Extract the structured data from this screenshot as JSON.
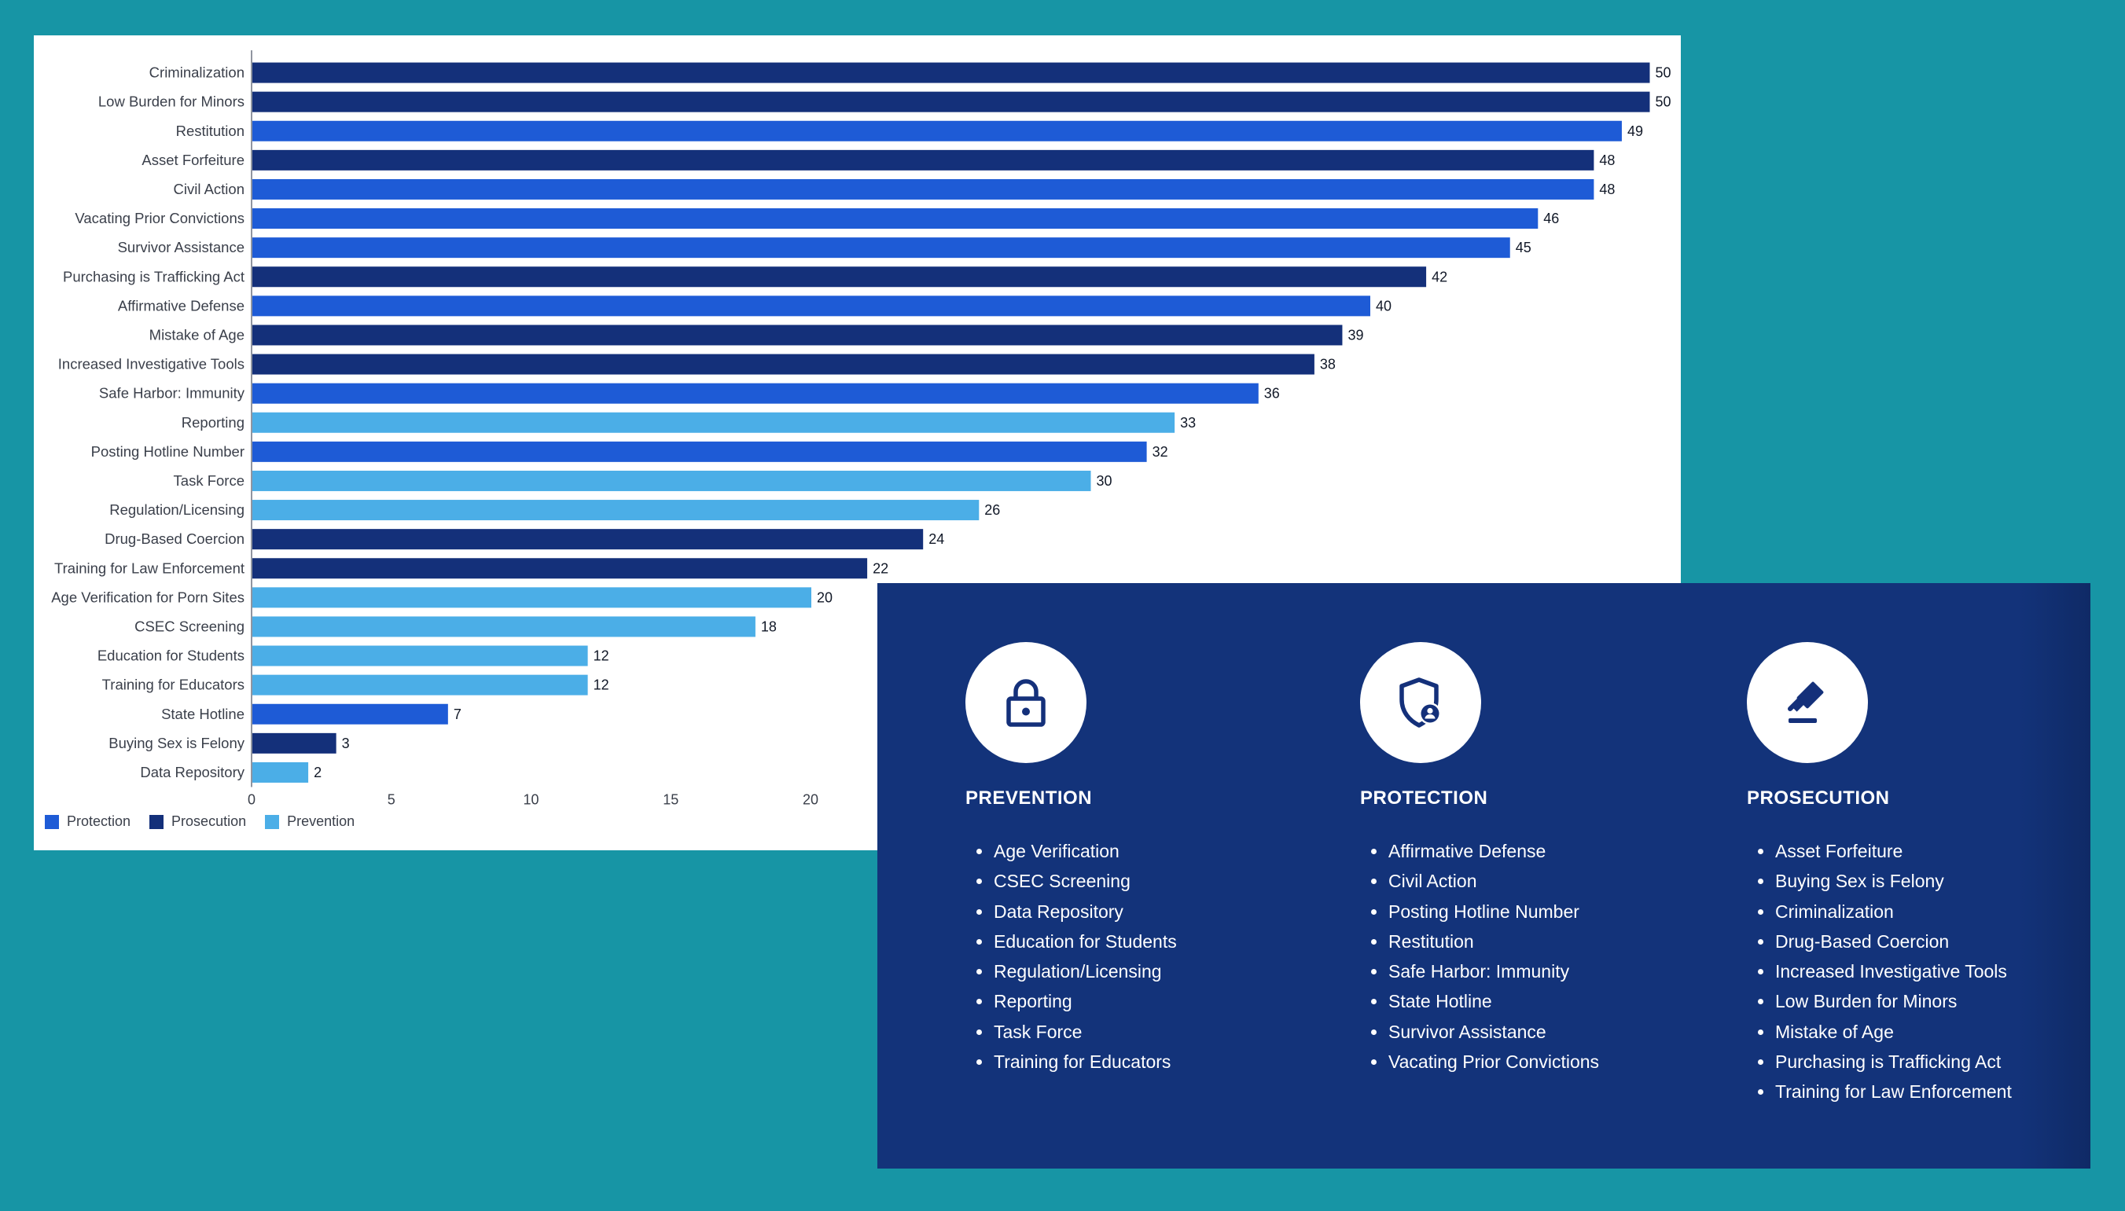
{
  "colors": {
    "Protection": "#1e5bd6",
    "Prosecution": "#14307a",
    "Prevention": "#4baee7",
    "panel_bg": "#13337a",
    "page_bg": "#1795a5"
  },
  "chart_data": {
    "type": "bar",
    "orientation": "horizontal",
    "categories": [
      "Criminalization",
      "Low Burden for Minors",
      "Restitution",
      "Asset Forfeiture",
      "Civil Action",
      "Vacating Prior Convictions",
      "Survivor Assistance",
      "Purchasing is Trafficking Act",
      "Affirmative Defense",
      "Mistake of Age",
      "Increased Investigative Tools",
      "Safe Harbor: Immunity",
      "Reporting",
      "Posting Hotline Number",
      "Task Force",
      "Regulation/Licensing",
      "Drug-Based Coercion",
      "Training for Law Enforcement",
      "Age Verification for Porn Sites",
      "CSEC Screening",
      "Education for Students",
      "Training for Educators",
      "State Hotline",
      "Buying Sex is Felony",
      "Data Repository"
    ],
    "values": [
      50,
      50,
      49,
      48,
      48,
      46,
      45,
      42,
      40,
      39,
      38,
      36,
      33,
      32,
      30,
      26,
      24,
      22,
      20,
      18,
      12,
      12,
      7,
      3,
      2
    ],
    "groups": [
      "Prosecution",
      "Prosecution",
      "Protection",
      "Prosecution",
      "Protection",
      "Protection",
      "Protection",
      "Prosecution",
      "Protection",
      "Prosecution",
      "Prosecution",
      "Protection",
      "Prevention",
      "Protection",
      "Prevention",
      "Prevention",
      "Prosecution",
      "Prosecution",
      "Prevention",
      "Prevention",
      "Prevention",
      "Prevention",
      "Protection",
      "Prosecution",
      "Prevention"
    ],
    "xticks": [
      0,
      5,
      10,
      15,
      20
    ],
    "xlim": [
      0,
      50
    ],
    "legend": [
      "Protection",
      "Prosecution",
      "Prevention"
    ],
    "legend_position": "bottom-left"
  },
  "panel": {
    "columns": [
      {
        "title": "PREVENTION",
        "icon": "lock-icon",
        "items": [
          "Age Verification",
          "CSEC Screening",
          "Data Repository",
          "Education for Students",
          "Regulation/Licensing",
          "Reporting",
          "Task Force",
          "Training for Educators"
        ]
      },
      {
        "title": "PROTECTION",
        "icon": "shield-user-icon",
        "items": [
          "Affirmative Defense",
          "Civil Action",
          "Posting Hotline Number",
          "Restitution",
          "Safe Harbor: Immunity",
          "State Hotline",
          "Survivor Assistance",
          "Vacating Prior Convictions"
        ]
      },
      {
        "title": "PROSECUTION",
        "icon": "gavel-icon",
        "items": [
          "Asset Forfeiture",
          "Buying Sex is Felony",
          "Criminalization",
          "Drug-Based Coercion",
          "Increased Investigative Tools",
          "Low Burden for Minors",
          "Mistake of Age",
          "Purchasing is Trafficking Act",
          "Training for Law Enforcement"
        ]
      }
    ]
  }
}
